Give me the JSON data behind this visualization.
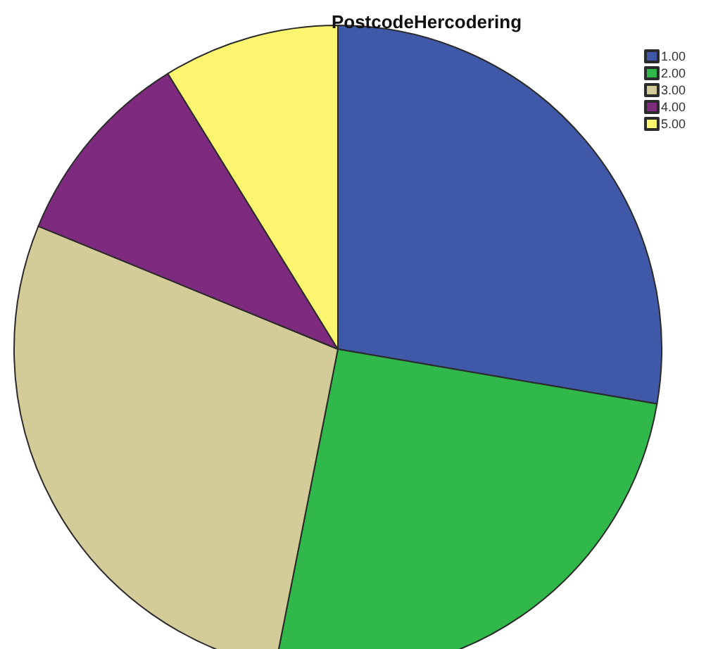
{
  "chart_data": {
    "type": "pie",
    "title": "PostcodeHercodering",
    "categories": [
      "1.00",
      "2.00",
      "3.00",
      "4.00",
      "5.00"
    ],
    "values": [
      27.7,
      25.4,
      28.1,
      10.0,
      8.8
    ],
    "colors": [
      "#3f58a8",
      "#30b84b",
      "#d4cc98",
      "#7e2b7f",
      "#fcf56f"
    ],
    "legend": "top right"
  }
}
